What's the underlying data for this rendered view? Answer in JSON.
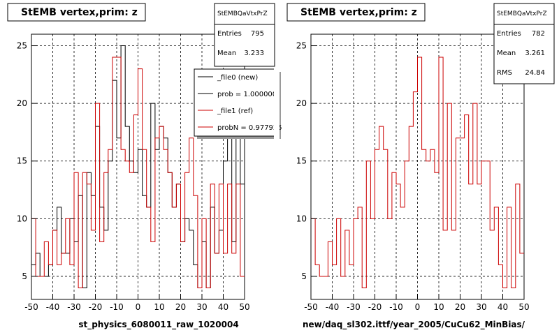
{
  "chart_data": [
    {
      "type": "histogram",
      "title": "StEMB  vertex,prim: z",
      "xlabel": "st_physics_6080011_raw_1020004",
      "xlim": [
        -50,
        50
      ],
      "ylim": [
        3,
        26
      ],
      "x_ticks": [
        -50,
        -40,
        -30,
        -20,
        -10,
        0,
        10,
        20,
        30,
        40,
        50
      ],
      "y_ticks": [
        5,
        10,
        15,
        20,
        25
      ],
      "grid": true,
      "bin_edges": [
        -50,
        -48,
        -46,
        -44,
        -42,
        -40,
        -38,
        -36,
        -34,
        -32,
        -30,
        -28,
        -26,
        -24,
        -22,
        -20,
        -18,
        -16,
        -14,
        -12,
        -10,
        -8,
        -6,
        -4,
        -2,
        0,
        2,
        4,
        6,
        8,
        10,
        12,
        14,
        16,
        18,
        20,
        22,
        24,
        26,
        28,
        30,
        32,
        34,
        36,
        38,
        40,
        42,
        44,
        46,
        48,
        50
      ],
      "series": [
        {
          "name": "_file0 (new)",
          "color": "#000000",
          "values": [
            6,
            7,
            5,
            5,
            6,
            9,
            11,
            7,
            7,
            10,
            8,
            12,
            4,
            14,
            12,
            18,
            11,
            9,
            15,
            22,
            17,
            25,
            18,
            15,
            14,
            16,
            12,
            11,
            20,
            16,
            18,
            17,
            14,
            11,
            13,
            8,
            10,
            9,
            6,
            4,
            8,
            4,
            11,
            7,
            9,
            15,
            18,
            8,
            17,
            13
          ]
        },
        {
          "name": "_file1 (ref)",
          "color": "#cc0000",
          "values": [
            10,
            5,
            5,
            8,
            6,
            9,
            6,
            7,
            10,
            6,
            14,
            4,
            14,
            13,
            9,
            20,
            8,
            14,
            16,
            24,
            24,
            16,
            15,
            14,
            19,
            23,
            16,
            11,
            8,
            17,
            18,
            16,
            14,
            11,
            13,
            8,
            14,
            17,
            12,
            4,
            10,
            4,
            13,
            7,
            13,
            7,
            13,
            7,
            13,
            5
          ]
        }
      ],
      "stats": {
        "header": "StEMBQaVtxPrZ",
        "entries": "795",
        "mean": "3.233"
      },
      "legend": {
        "position": "top-right",
        "entries": [
          {
            "label": "_file0 (new)",
            "color": "#000000"
          },
          {
            "label": "prob = 1.000000",
            "color": "#000000"
          },
          {
            "label": "_file1 (ref)",
            "color": "#cc0000"
          },
          {
            "label": "probN = 0.977925",
            "color": "#cc0000"
          }
        ]
      }
    },
    {
      "type": "histogram",
      "title": "StEMB  vertex,prim: z",
      "xlabel": "new/daq_sl302.ittf/year_2005/CuCu62_MinBias/",
      "xlim": [
        -50,
        50
      ],
      "ylim": [
        3,
        26
      ],
      "x_ticks": [
        -50,
        -40,
        -30,
        -20,
        -10,
        0,
        10,
        20,
        30,
        40,
        50
      ],
      "y_ticks": [
        5,
        10,
        15,
        20,
        25
      ],
      "grid": true,
      "bin_edges": [
        -50,
        -48,
        -46,
        -44,
        -42,
        -40,
        -38,
        -36,
        -34,
        -32,
        -30,
        -28,
        -26,
        -24,
        -22,
        -20,
        -18,
        -16,
        -14,
        -12,
        -10,
        -8,
        -6,
        -4,
        -2,
        0,
        2,
        4,
        6,
        8,
        10,
        12,
        14,
        16,
        18,
        20,
        22,
        24,
        26,
        28,
        30,
        32,
        34,
        36,
        38,
        40,
        42,
        44,
        46,
        48,
        50
      ],
      "series": [
        {
          "name": "",
          "color": "#cc0000",
          "values": [
            10,
            6,
            5,
            5,
            8,
            6,
            10,
            5,
            9,
            6,
            10,
            11,
            4,
            15,
            10,
            16,
            18,
            16,
            10,
            14,
            13,
            11,
            15,
            18,
            21,
            24,
            16,
            15,
            16,
            14,
            24,
            9,
            20,
            9,
            17,
            17,
            19,
            13,
            20,
            13,
            15,
            15,
            9,
            11,
            6,
            4,
            11,
            4,
            13,
            7
          ]
        }
      ],
      "stats": {
        "header": "StEMBQaVtxPrZ",
        "entries": "782",
        "mean": "3.261",
        "rms": "24.84"
      }
    }
  ],
  "stat_labels": {
    "entries": "Entries",
    "mean": "Mean",
    "rms": "RMS"
  }
}
